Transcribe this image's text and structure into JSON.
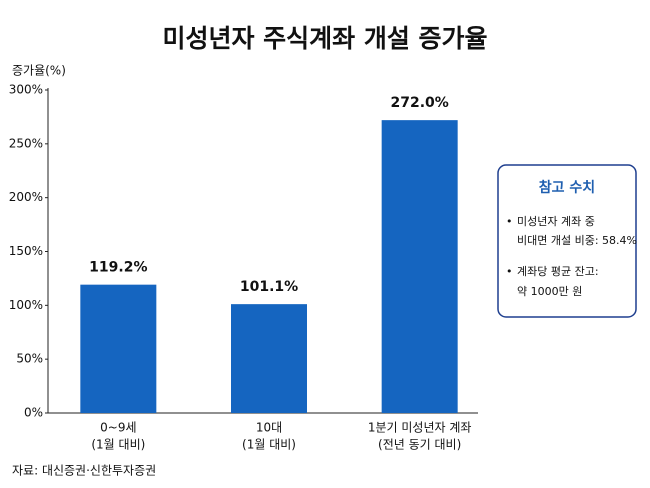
{
  "chart_data": {
    "type": "bar",
    "title": "미성년자 주식계좌 개설 증가율",
    "y_label": "증가율(%)",
    "categories": [
      [
        "0~9세",
        "(1월 대비)"
      ],
      [
        "10대",
        "(1월 대비)"
      ],
      [
        "1분기 미성년자 계좌",
        "(전년 동기 대비)"
      ]
    ],
    "values": [
      119.2,
      101.1,
      272.0
    ],
    "value_labels": [
      "119.2%",
      "101.1%",
      "272.0%"
    ],
    "color": "#1565c0",
    "ylim": [
      0,
      300
    ],
    "yticks": [
      {
        "value": 0,
        "label": "0%"
      },
      {
        "value": 50,
        "label": "50%"
      },
      {
        "value": 100,
        "label": "100%"
      },
      {
        "value": 150,
        "label": "150%"
      },
      {
        "value": 200,
        "label": "200%"
      },
      {
        "value": 250,
        "label": "250%"
      },
      {
        "value": 300,
        "label": "300%"
      }
    ],
    "grid": false,
    "source": "자료: 대신증권·신한투자증권"
  },
  "reference_box": {
    "title": "참고 수치",
    "items": [
      [
        "미성년자 계좌 중",
        "비대면 개설 비중: 58.4%"
      ],
      [
        "계좌당 평균 잔고:",
        "약 1000만 원"
      ]
    ]
  }
}
